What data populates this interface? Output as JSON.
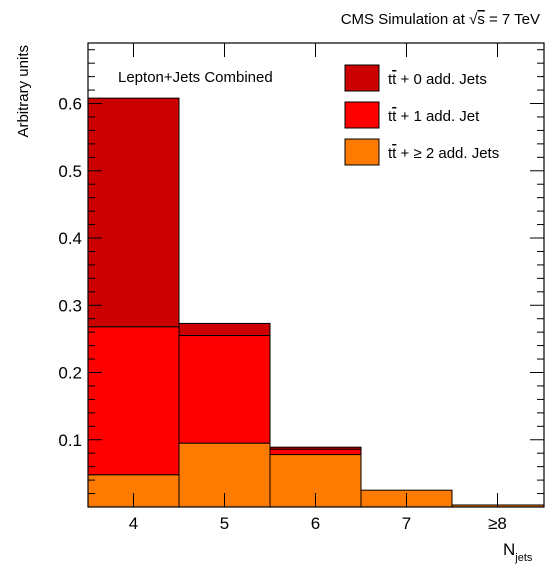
{
  "header": {
    "prefix": "CMS Simulation at ",
    "sqrt_symbol": "√",
    "energy_var": "s",
    "energy_value": " = 7 TeV"
  },
  "inset_label": "Lepton+Jets Combined",
  "chart_data": {
    "type": "bar",
    "stacked": true,
    "categories": [
      "4",
      "5",
      "6",
      "7",
      "≥8"
    ],
    "xlabel": "N",
    "xlabel_sub": "jets",
    "ylabel": "Arbitrary units",
    "ylim": [
      0,
      0.69
    ],
    "yticks": [
      0.1,
      0.2,
      0.3,
      0.4,
      0.5,
      0.6
    ],
    "ytick_labels": [
      "0.1",
      "0.2",
      "0.3",
      "0.4",
      "0.5",
      "0.6"
    ],
    "grid": false,
    "legend_position": "top-right",
    "series": [
      {
        "name": "tt̄ + ≥ 2 add. Jets",
        "legend_pre": "t",
        "legend_bar": "t",
        "legend_post": " + ≥ 2 add. Jets",
        "color": "#FF7A00",
        "values": [
          0.048,
          0.095,
          0.078,
          0.025,
          0.003
        ]
      },
      {
        "name": "tt̄ + 1 add. Jet",
        "legend_pre": "t",
        "legend_bar": "t",
        "legend_post": " + 1 add. Jet",
        "color": "#FF0000",
        "values": [
          0.22,
          0.16,
          0.008,
          0.0,
          0.0
        ]
      },
      {
        "name": "tt̄ + 0 add. Jets",
        "legend_pre": "t",
        "legend_bar": "t",
        "legend_post": " + 0 add. Jets",
        "color": "#CC0000",
        "values": [
          0.34,
          0.018,
          0.003,
          0.0,
          0.0
        ]
      }
    ]
  }
}
